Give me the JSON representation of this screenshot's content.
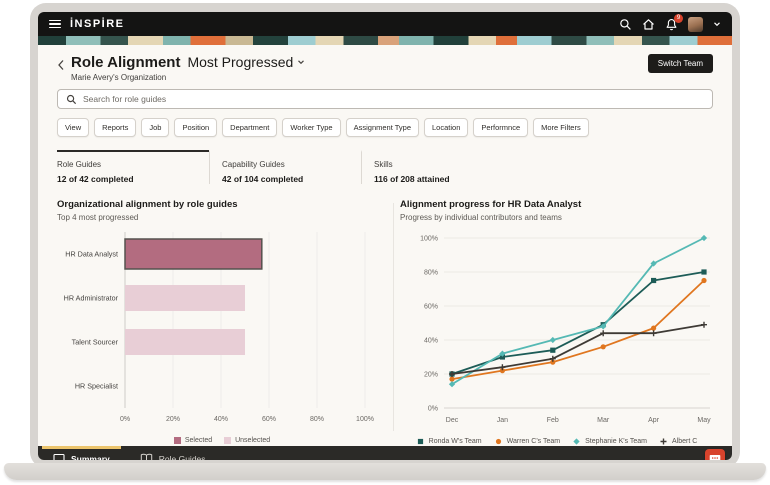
{
  "top_bar": {
    "logo": "İNSPİRE",
    "notification_count": "9"
  },
  "header": {
    "title": "Role Alignment",
    "view_selector": "Most Progressed",
    "subtitle": "Marie Avery's Organization",
    "switch_team_label": "Switch Team"
  },
  "search": {
    "placeholder": "Search for role guides"
  },
  "filters": [
    "View",
    "Reports",
    "Job",
    "Position",
    "Department",
    "Worker Type",
    "Assignment Type",
    "Location",
    "Performnce",
    "More Filters"
  ],
  "stat_tabs": [
    {
      "label": "Role Guides",
      "value": "12 of 42 completed",
      "active": true
    },
    {
      "label": "Capability Guides",
      "value": "42 of 104 completed",
      "active": false
    },
    {
      "label": "Skills",
      "value": "116 of 208 attained",
      "active": false
    }
  ],
  "chart_data": [
    {
      "type": "bar",
      "orientation": "horizontal",
      "title": "Organizational alignment by role guides",
      "subtitle": "Top 4 most progressed",
      "categories": [
        "HR Data Analyst",
        "HR Administrator",
        "Talent Sourcer",
        "HR Specialist"
      ],
      "values": [
        57,
        50,
        50,
        0
      ],
      "selected_index": 0,
      "xlim": [
        0,
        100
      ],
      "x_ticks": [
        "0%",
        "20%",
        "40%",
        "60%",
        "80%",
        "100%"
      ],
      "grid": true,
      "legend": [
        {
          "label": "Selected",
          "color": "#b36c80"
        },
        {
          "label": "Unselected",
          "color": "#e8ced6"
        }
      ]
    },
    {
      "type": "line",
      "title": "Alignment progress for HR Data Analyst",
      "subtitle": "Progress by individual contributors and teams",
      "x": [
        "Dec",
        "Jan",
        "Feb",
        "Mar",
        "Apr",
        "May"
      ],
      "ylim": [
        0,
        100
      ],
      "y_ticks": [
        "0%",
        "20%",
        "40%",
        "60%",
        "80%",
        "100%"
      ],
      "grid": true,
      "legend_position": "bottom",
      "series": [
        {
          "name": "Ronda W's Team",
          "color": "#1d5c57",
          "marker": "square",
          "values": [
            20,
            30,
            34,
            49,
            75,
            80
          ]
        },
        {
          "name": "Warren C's Team",
          "color": "#e0761f",
          "marker": "circle",
          "values": [
            17,
            22,
            27,
            36,
            47,
            75
          ]
        },
        {
          "name": "Stephanie K's Team",
          "color": "#55b9b4",
          "marker": "diamond",
          "values": [
            14,
            32,
            40,
            48,
            85,
            100
          ]
        },
        {
          "name": "Albert C",
          "color": "#3e3a35",
          "marker": "plus",
          "values": [
            20,
            24,
            29,
            44,
            44,
            49
          ]
        }
      ]
    }
  ],
  "bottom_bar": {
    "items": [
      {
        "label": "Summary",
        "icon": "summary",
        "active": true
      },
      {
        "label": "Role Guides",
        "icon": "book",
        "active": false
      }
    ]
  }
}
